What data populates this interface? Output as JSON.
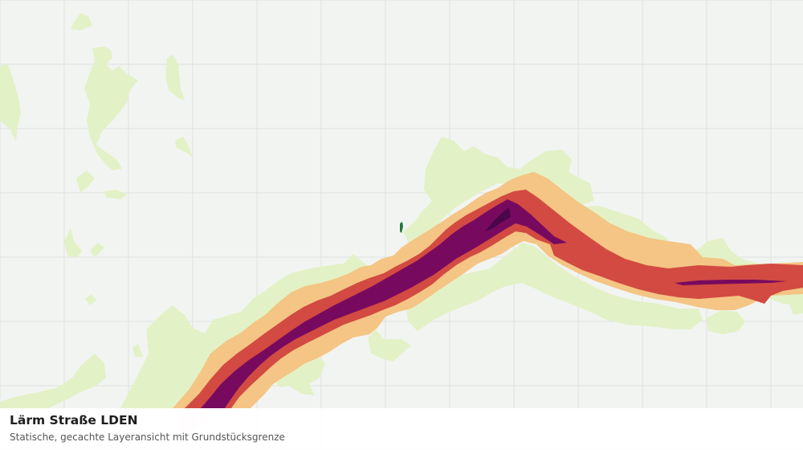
{
  "map": {
    "base_color": "#f2f4f2",
    "grid_color": "#dfe2df",
    "noise_classes": [
      {
        "name": "lowest",
        "color": "#e3f1c6"
      },
      {
        "name": "low",
        "color": "#f4c584"
      },
      {
        "name": "medium",
        "color": "#d24a42"
      },
      {
        "name": "high",
        "color": "#770a5e"
      },
      {
        "name": "highest",
        "color": "#4a0648"
      }
    ],
    "marker_color": "#1f7a3a"
  },
  "caption": {
    "title": "Lärm Straße LDEN",
    "subtitle": "Statische, gecachte Layeransicht mit Grundstücksgrenze"
  }
}
